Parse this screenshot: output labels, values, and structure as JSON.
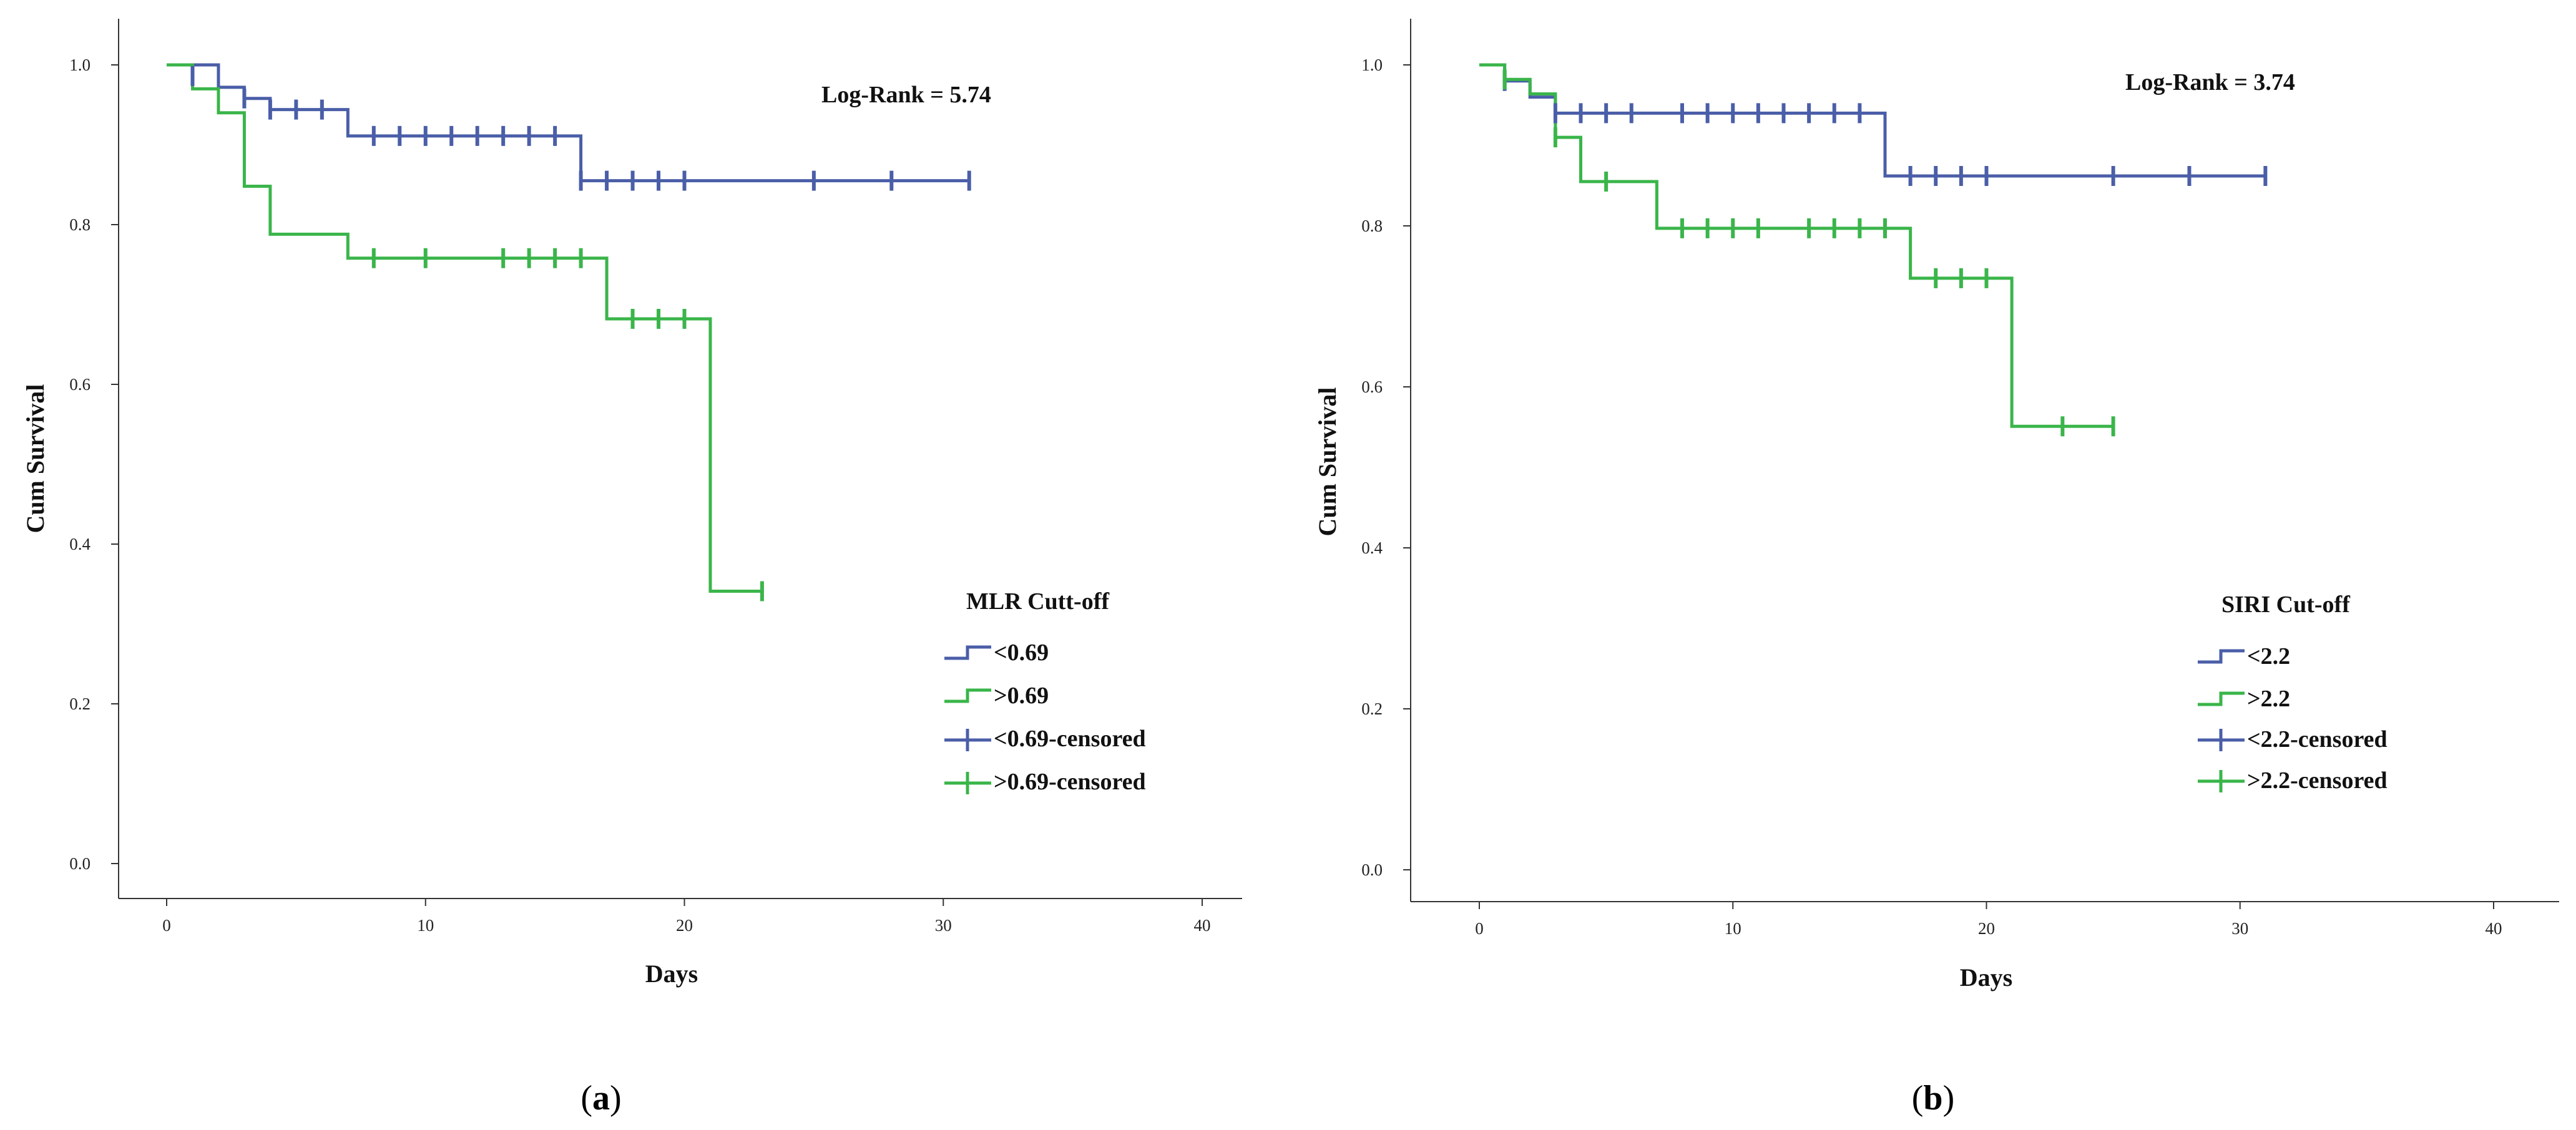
{
  "chart_data": [
    {
      "type": "line",
      "subtype": "kaplan-meier",
      "panel_label": "a",
      "xlabel": "Days",
      "ylabel": "Cum Survival",
      "xlim": [
        0,
        40
      ],
      "ylim": [
        0,
        1.0
      ],
      "xticks": [
        0,
        10,
        20,
        30,
        40
      ],
      "yticks": [
        0.0,
        0.2,
        0.4,
        0.6,
        0.8,
        1.0
      ],
      "xtick_labels": [
        "0",
        "10",
        "20",
        "30",
        "40"
      ],
      "ytick_labels": [
        "0.0",
        "0.2",
        "0.4",
        "0.6",
        "0.8",
        "1.0"
      ],
      "annotation": "Log-Rank = 5.74",
      "legend_title": "MLR Cutt-off",
      "legend_entries": [
        "<0.69",
        ">0.69",
        "<0.69-censored",
        ">0.69-censored"
      ],
      "series": [
        {
          "name": "<0.69",
          "color": "#4a5ea8",
          "steps": [
            [
              0,
              1.0
            ],
            [
              2,
              0.972
            ],
            [
              3,
              0.958
            ],
            [
              4,
              0.944
            ],
            [
              7,
              0.911
            ],
            [
              16,
              0.855
            ],
            [
              31,
              0.855
            ]
          ],
          "censored": [
            [
              1,
              0.986
            ],
            [
              3,
              0.958
            ],
            [
              4,
              0.944
            ],
            [
              5,
              0.944
            ],
            [
              6,
              0.944
            ],
            [
              8,
              0.911
            ],
            [
              9,
              0.911
            ],
            [
              10,
              0.911
            ],
            [
              11,
              0.911
            ],
            [
              12,
              0.911
            ],
            [
              13,
              0.911
            ],
            [
              14,
              0.911
            ],
            [
              15,
              0.911
            ],
            [
              16,
              0.855
            ],
            [
              17,
              0.855
            ],
            [
              18,
              0.855
            ],
            [
              19,
              0.855
            ],
            [
              20,
              0.855
            ],
            [
              25,
              0.855
            ],
            [
              28,
              0.855
            ],
            [
              31,
              0.855
            ]
          ]
        },
        {
          "name": ">0.69",
          "color": "#3ab54a",
          "steps": [
            [
              0,
              1.0
            ],
            [
              1,
              0.97
            ],
            [
              2,
              0.94
            ],
            [
              3,
              0.848
            ],
            [
              4,
              0.788
            ],
            [
              7,
              0.758
            ],
            [
              17,
              0.682
            ],
            [
              21,
              0.341
            ],
            [
              23,
              0.341
            ]
          ],
          "censored": [
            [
              8,
              0.758
            ],
            [
              10,
              0.758
            ],
            [
              13,
              0.758
            ],
            [
              14,
              0.758
            ],
            [
              15,
              0.758
            ],
            [
              16,
              0.758
            ],
            [
              18,
              0.682
            ],
            [
              19,
              0.682
            ],
            [
              20,
              0.682
            ],
            [
              23,
              0.341
            ]
          ]
        }
      ]
    },
    {
      "type": "line",
      "subtype": "kaplan-meier",
      "panel_label": "b",
      "xlabel": "Days",
      "ylabel": "Cum Survival",
      "xlim": [
        0,
        40
      ],
      "ylim": [
        0,
        1.0
      ],
      "xticks": [
        0,
        10,
        20,
        30,
        40
      ],
      "yticks": [
        0.0,
        0.2,
        0.4,
        0.6,
        0.8,
        1.0
      ],
      "xtick_labels": [
        "0",
        "10",
        "20",
        "30",
        "40"
      ],
      "ytick_labels": [
        "0.0",
        "0.2",
        "0.4",
        "0.6",
        "0.8",
        "1.0"
      ],
      "annotation": "Log-Rank = 3.74",
      "legend_title": "SIRI Cut-off",
      "legend_entries": [
        "<2.2",
        ">2.2",
        "<2.2-censored",
        ">2.2-censored"
      ],
      "series": [
        {
          "name": "<2.2",
          "color": "#4a5ea8",
          "steps": [
            [
              0,
              1.0
            ],
            [
              1,
              0.98
            ],
            [
              2,
              0.96
            ],
            [
              3,
              0.94
            ],
            [
              16,
              0.862
            ],
            [
              31,
              0.862
            ]
          ],
          "censored": [
            [
              1,
              0.98
            ],
            [
              3,
              0.94
            ],
            [
              4,
              0.94
            ],
            [
              5,
              0.94
            ],
            [
              6,
              0.94
            ],
            [
              8,
              0.94
            ],
            [
              9,
              0.94
            ],
            [
              10,
              0.94
            ],
            [
              11,
              0.94
            ],
            [
              12,
              0.94
            ],
            [
              13,
              0.94
            ],
            [
              14,
              0.94
            ],
            [
              15,
              0.94
            ],
            [
              17,
              0.862
            ],
            [
              18,
              0.862
            ],
            [
              19,
              0.862
            ],
            [
              20,
              0.862
            ],
            [
              25,
              0.862
            ],
            [
              28,
              0.862
            ],
            [
              31,
              0.862
            ]
          ]
        },
        {
          "name": ">2.2",
          "color": "#3ab54a",
          "steps": [
            [
              0,
              1.0
            ],
            [
              1,
              0.982
            ],
            [
              2,
              0.964
            ],
            [
              3,
              0.91
            ],
            [
              4,
              0.855
            ],
            [
              7,
              0.797
            ],
            [
              17,
              0.735
            ],
            [
              21,
              0.551
            ],
            [
              25,
              0.551
            ]
          ],
          "censored": [
            [
              1,
              0.982
            ],
            [
              3,
              0.91
            ],
            [
              5,
              0.855
            ],
            [
              8,
              0.797
            ],
            [
              9,
              0.797
            ],
            [
              10,
              0.797
            ],
            [
              11,
              0.797
            ],
            [
              13,
              0.797
            ],
            [
              14,
              0.797
            ],
            [
              15,
              0.797
            ],
            [
              16,
              0.797
            ],
            [
              18,
              0.735
            ],
            [
              19,
              0.735
            ],
            [
              20,
              0.735
            ],
            [
              23,
              0.551
            ],
            [
              25,
              0.551
            ]
          ]
        }
      ]
    }
  ]
}
